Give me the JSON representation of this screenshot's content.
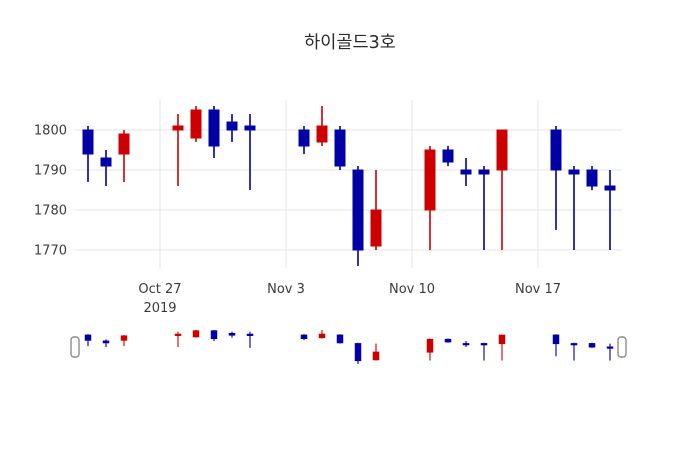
{
  "title": "하이골드3호",
  "colors": {
    "up": "#cc0000",
    "down": "#0000a6",
    "grid": "#e6e6e6",
    "text": "#3b3b3b",
    "title_text": "#2a2a2a",
    "handle_fill": "#ffffff",
    "handle_border": "#8c8c8c",
    "background": "#ffffff"
  },
  "chart_data": {
    "type": "candlestick",
    "title": "하이골드3호",
    "legend_position": "none",
    "grid": true,
    "rangeslider": true,
    "ylim": [
      1765.5,
      1807.5
    ],
    "y_ticks": [
      1770,
      1780,
      1790,
      1800
    ],
    "x_ticks": [
      {
        "offset": 0,
        "label": "Oct 27",
        "sublabel": "2019"
      },
      {
        "offset": 7,
        "label": "Nov 3",
        "sublabel": ""
      },
      {
        "offset": 14,
        "label": "Nov 10",
        "sublabel": ""
      },
      {
        "offset": 21,
        "label": "Nov 17",
        "sublabel": ""
      }
    ],
    "candles": [
      {
        "date": "Oct 23",
        "t": -4,
        "open": 1800,
        "high": 1801,
        "low": 1787,
        "close": 1794
      },
      {
        "date": "Oct 24",
        "t": -3,
        "open": 1793,
        "high": 1795,
        "low": 1786,
        "close": 1791
      },
      {
        "date": "Oct 25",
        "t": -2,
        "open": 1794,
        "high": 1800,
        "low": 1787,
        "close": 1799
      },
      {
        "date": "Oct 28",
        "t": 1,
        "open": 1800,
        "high": 1804,
        "low": 1786,
        "close": 1801
      },
      {
        "date": "Oct 29",
        "t": 2,
        "open": 1798,
        "high": 1806,
        "low": 1797,
        "close": 1805
      },
      {
        "date": "Oct 30",
        "t": 3,
        "open": 1805,
        "high": 1806,
        "low": 1793,
        "close": 1796
      },
      {
        "date": "Oct 31",
        "t": 4,
        "open": 1802,
        "high": 1804,
        "low": 1797,
        "close": 1800
      },
      {
        "date": "Nov 1",
        "t": 5,
        "open": 1801,
        "high": 1804,
        "low": 1785,
        "close": 1800
      },
      {
        "date": "Nov 4",
        "t": 8,
        "open": 1800,
        "high": 1801,
        "low": 1794,
        "close": 1796
      },
      {
        "date": "Nov 5",
        "t": 9,
        "open": 1797,
        "high": 1806,
        "low": 1796,
        "close": 1801
      },
      {
        "date": "Nov 6",
        "t": 10,
        "open": 1800,
        "high": 1801,
        "low": 1790,
        "close": 1791
      },
      {
        "date": "Nov 7",
        "t": 11,
        "open": 1790,
        "high": 1791,
        "low": 1766,
        "close": 1770
      },
      {
        "date": "Nov 8",
        "t": 12,
        "open": 1771,
        "high": 1790,
        "low": 1770,
        "close": 1780
      },
      {
        "date": "Nov 11",
        "t": 15,
        "open": 1780,
        "high": 1796,
        "low": 1770,
        "close": 1795
      },
      {
        "date": "Nov 12",
        "t": 16,
        "open": 1795,
        "high": 1796,
        "low": 1791,
        "close": 1792
      },
      {
        "date": "Nov 13",
        "t": 17,
        "open": 1790,
        "high": 1793,
        "low": 1786,
        "close": 1789
      },
      {
        "date": "Nov 14",
        "t": 18,
        "open": 1790,
        "high": 1791,
        "low": 1770,
        "close": 1789
      },
      {
        "date": "Nov 15",
        "t": 19,
        "open": 1790,
        "high": 1800,
        "low": 1770,
        "close": 1800
      },
      {
        "date": "Nov 18",
        "t": 22,
        "open": 1800,
        "high": 1801,
        "low": 1775,
        "close": 1790
      },
      {
        "date": "Nov 19",
        "t": 23,
        "open": 1790,
        "high": 1791,
        "low": 1770,
        "close": 1789
      },
      {
        "date": "Nov 20",
        "t": 24,
        "open": 1790,
        "high": 1791,
        "low": 1785,
        "close": 1786
      },
      {
        "date": "Nov 21",
        "t": 25,
        "open": 1786,
        "high": 1790,
        "low": 1770,
        "close": 1785
      }
    ]
  }
}
